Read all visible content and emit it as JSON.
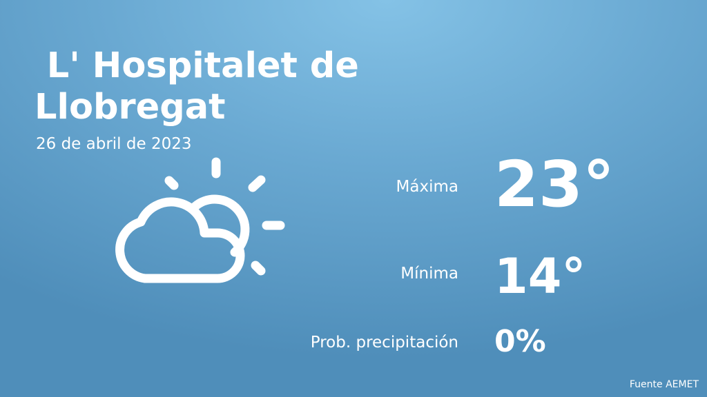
{
  "city": "L' Hospitalet de Llobregat",
  "date": "26 de abril de 2023",
  "icon": "partly-cloudy-icon",
  "max": {
    "label": "Máxima",
    "value": "23°"
  },
  "min": {
    "label": "Mínima",
    "value": "14°"
  },
  "precip": {
    "label": "Prob. precipitación",
    "value": "0%"
  },
  "source": "Fuente AEMET"
}
